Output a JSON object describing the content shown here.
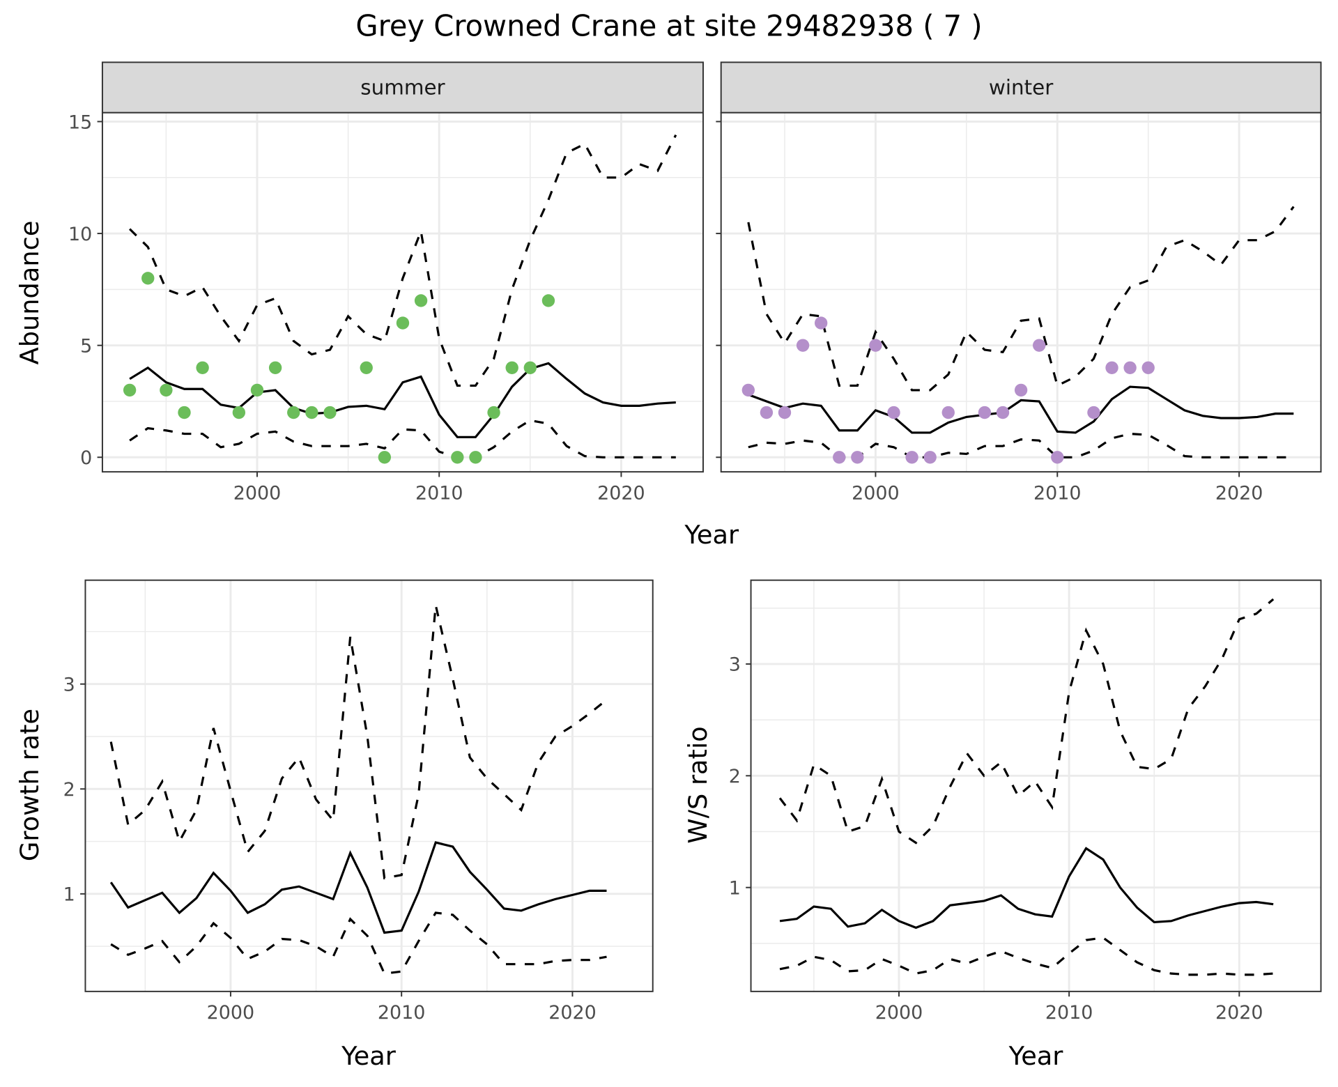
{
  "title": "Grey Crowned Crane at site 29482938 ( 7 )",
  "colors": {
    "summer": "#6BBD5A",
    "winter": "#B48FCA",
    "line": "#000000",
    "strip": "#D9D9D9",
    "grid": "#EBEBEB"
  },
  "chart_data": [
    {
      "type": "line",
      "facet": "summer",
      "xlabel": "Year",
      "ylabel": "Abundance",
      "xlim": [
        1991.5,
        2024.5
      ],
      "ylim": [
        -0.65,
        15.4
      ],
      "xticks": [
        2000,
        2010,
        2020
      ],
      "yticks": [
        0,
        5,
        10,
        15
      ],
      "x": [
        1993,
        1994,
        1995,
        1996,
        1997,
        1998,
        1999,
        2000,
        2001,
        2002,
        2003,
        2004,
        2005,
        2006,
        2007,
        2008,
        2009,
        2010,
        2011,
        2012,
        2013,
        2014,
        2015,
        2016,
        2017,
        2018,
        2019,
        2020,
        2021,
        2022,
        2023
      ],
      "mean": [
        3.5,
        4.0,
        3.35,
        3.05,
        3.05,
        2.35,
        2.2,
        2.9,
        3.0,
        2.2,
        1.95,
        2.0,
        2.25,
        2.3,
        2.15,
        3.35,
        3.6,
        1.9,
        0.9,
        0.9,
        1.9,
        3.15,
        3.95,
        4.2,
        3.5,
        2.85,
        2.45,
        2.3,
        2.3,
        2.4,
        2.45
      ],
      "upper": [
        10.2,
        9.4,
        7.5,
        7.2,
        7.6,
        6.3,
        5.2,
        6.8,
        7.1,
        5.2,
        4.6,
        4.8,
        6.3,
        5.5,
        5.2,
        8.0,
        10.1,
        5.3,
        3.2,
        3.2,
        4.4,
        7.5,
        9.7,
        11.5,
        13.6,
        14.0,
        12.5,
        12.5,
        13.1,
        12.8,
        14.4
      ],
      "lower": [
        0.75,
        1.3,
        1.2,
        1.05,
        1.05,
        0.45,
        0.6,
        1.05,
        1.15,
        0.7,
        0.5,
        0.5,
        0.5,
        0.6,
        0.4,
        1.25,
        1.2,
        0.25,
        0.0,
        0.0,
        0.45,
        1.15,
        1.65,
        1.5,
        0.5,
        0.05,
        0.0,
        0.0,
        0.0,
        0.0,
        0.0
      ],
      "points": {
        "x": [
          1993,
          1994,
          1995,
          1996,
          1997,
          1999,
          2000,
          2001,
          2002,
          2003,
          2004,
          2006,
          2007,
          2008,
          2009,
          2011,
          2012,
          2013,
          2014,
          2015,
          2016
        ],
        "y": [
          3,
          8,
          3,
          2,
          4,
          2,
          3,
          4,
          2,
          2,
          2,
          4,
          0,
          6,
          7,
          0,
          0,
          2,
          4,
          4,
          7
        ]
      },
      "point_color": "summer"
    },
    {
      "type": "line",
      "facet": "winter",
      "xlabel": "",
      "ylabel": "",
      "xlim": [
        1991.5,
        2024.5
      ],
      "ylim": [
        -0.65,
        15.4
      ],
      "xticks": [
        2000,
        2010,
        2020
      ],
      "yticks": [
        0,
        5,
        10,
        15
      ],
      "x": [
        1993,
        1994,
        1995,
        1996,
        1997,
        1998,
        1999,
        2000,
        2001,
        2002,
        2003,
        2004,
        2005,
        2006,
        2007,
        2008,
        2009,
        2010,
        2011,
        2012,
        2013,
        2014,
        2015,
        2016,
        2017,
        2018,
        2019,
        2020,
        2021,
        2022,
        2023
      ],
      "mean": [
        2.8,
        2.5,
        2.2,
        2.4,
        2.3,
        1.2,
        1.2,
        2.1,
        1.8,
        1.1,
        1.1,
        1.55,
        1.8,
        1.9,
        2.0,
        2.55,
        2.5,
        1.15,
        1.1,
        1.6,
        2.6,
        3.15,
        3.1,
        2.6,
        2.1,
        1.85,
        1.75,
        1.75,
        1.8,
        1.95,
        1.95
      ],
      "upper": [
        10.5,
        6.4,
        5.1,
        6.4,
        6.3,
        3.2,
        3.2,
        5.6,
        4.4,
        3.0,
        3.0,
        3.7,
        5.6,
        4.8,
        4.7,
        6.1,
        6.2,
        3.2,
        3.6,
        4.4,
        6.4,
        7.6,
        7.9,
        9.4,
        9.7,
        9.2,
        8.6,
        9.7,
        9.7,
        10.1,
        11.2
      ],
      "lower": [
        0.45,
        0.65,
        0.6,
        0.75,
        0.65,
        0.0,
        0.0,
        0.6,
        0.45,
        0.0,
        0.0,
        0.2,
        0.15,
        0.5,
        0.5,
        0.8,
        0.75,
        0.0,
        0.0,
        0.3,
        0.85,
        1.05,
        1.0,
        0.55,
        0.05,
        0.0,
        0.0,
        0.0,
        0.0,
        0.0,
        0.0
      ],
      "points": {
        "x": [
          1993,
          1994,
          1995,
          1996,
          1997,
          1998,
          1999,
          2000,
          2001,
          2002,
          2003,
          2004,
          2006,
          2007,
          2008,
          2009,
          2010,
          2012,
          2013,
          2014,
          2015
        ],
        "y": [
          3,
          2,
          2,
          5,
          6,
          0,
          0,
          5,
          2,
          0,
          0,
          2,
          2,
          2,
          3,
          5,
          0,
          2,
          4,
          4,
          4
        ]
      },
      "point_color": "winter"
    },
    {
      "type": "line",
      "xlabel": "Year",
      "ylabel": "Growth rate",
      "xlim": [
        1991.5,
        2024.7
      ],
      "ylim": [
        0.07,
        3.99
      ],
      "xticks": [
        2000,
        2010,
        2020
      ],
      "yticks": [
        1,
        2,
        3
      ],
      "x": [
        1993,
        1994,
        1995,
        1996,
        1997,
        1998,
        1999,
        2000,
        2001,
        2002,
        2003,
        2004,
        2005,
        2006,
        2007,
        2008,
        2009,
        2010,
        2011,
        2012,
        2013,
        2014,
        2015,
        2016,
        2017,
        2018,
        2019,
        2020,
        2021,
        2022
      ],
      "mean": [
        1.11,
        0.87,
        0.94,
        1.01,
        0.82,
        0.96,
        1.2,
        1.03,
        0.82,
        0.9,
        1.04,
        1.07,
        1.01,
        0.95,
        1.39,
        1.06,
        0.63,
        0.65,
        1.02,
        1.49,
        1.45,
        1.21,
        1.04,
        0.86,
        0.84,
        0.9,
        0.95,
        0.99,
        1.03,
        1.03
      ],
      "upper": [
        2.45,
        1.66,
        1.8,
        2.07,
        1.5,
        1.8,
        2.58,
        1.98,
        1.4,
        1.6,
        2.1,
        2.3,
        1.9,
        1.7,
        3.45,
        2.5,
        1.15,
        1.18,
        1.95,
        3.75,
        3.05,
        2.3,
        2.1,
        1.95,
        1.8,
        2.25,
        2.5,
        2.6,
        2.72,
        2.85
      ],
      "lower": [
        0.52,
        0.42,
        0.48,
        0.55,
        0.35,
        0.5,
        0.72,
        0.58,
        0.38,
        0.45,
        0.57,
        0.56,
        0.5,
        0.4,
        0.76,
        0.6,
        0.24,
        0.26,
        0.55,
        0.82,
        0.8,
        0.65,
        0.52,
        0.33,
        0.33,
        0.33,
        0.36,
        0.37,
        0.37,
        0.4
      ]
    },
    {
      "type": "line",
      "xlabel": "Year",
      "ylabel": "W/S ratio",
      "xlim": [
        1991.3,
        2024.8
      ],
      "ylim": [
        0.07,
        3.75
      ],
      "xticks": [
        2000,
        2010,
        2020
      ],
      "yticks": [
        1,
        2,
        3
      ],
      "x": [
        1993,
        1994,
        1995,
        1996,
        1997,
        1998,
        1999,
        2000,
        2001,
        2002,
        2003,
        2004,
        2005,
        2006,
        2007,
        2008,
        2009,
        2010,
        2011,
        2012,
        2013,
        2014,
        2015,
        2016,
        2017,
        2018,
        2019,
        2020,
        2021,
        2022
      ],
      "mean": [
        0.7,
        0.72,
        0.83,
        0.81,
        0.65,
        0.68,
        0.8,
        0.7,
        0.64,
        0.7,
        0.84,
        0.86,
        0.88,
        0.93,
        0.81,
        0.76,
        0.74,
        1.1,
        1.35,
        1.25,
        1.0,
        0.82,
        0.69,
        0.7,
        0.75,
        0.79,
        0.83,
        0.86,
        0.87,
        0.85
      ],
      "upper": [
        1.8,
        1.6,
        2.1,
        2.0,
        1.5,
        1.55,
        1.97,
        1.5,
        1.4,
        1.55,
        1.9,
        2.2,
        2.0,
        2.12,
        1.82,
        1.95,
        1.72,
        2.75,
        3.3,
        3.0,
        2.4,
        2.08,
        2.06,
        2.15,
        2.6,
        2.8,
        3.05,
        3.4,
        3.45,
        3.58
      ],
      "lower": [
        0.27,
        0.3,
        0.38,
        0.35,
        0.25,
        0.26,
        0.36,
        0.3,
        0.23,
        0.26,
        0.36,
        0.32,
        0.38,
        0.43,
        0.37,
        0.32,
        0.28,
        0.41,
        0.53,
        0.55,
        0.44,
        0.33,
        0.26,
        0.23,
        0.22,
        0.22,
        0.23,
        0.22,
        0.22,
        0.23
      ]
    }
  ]
}
